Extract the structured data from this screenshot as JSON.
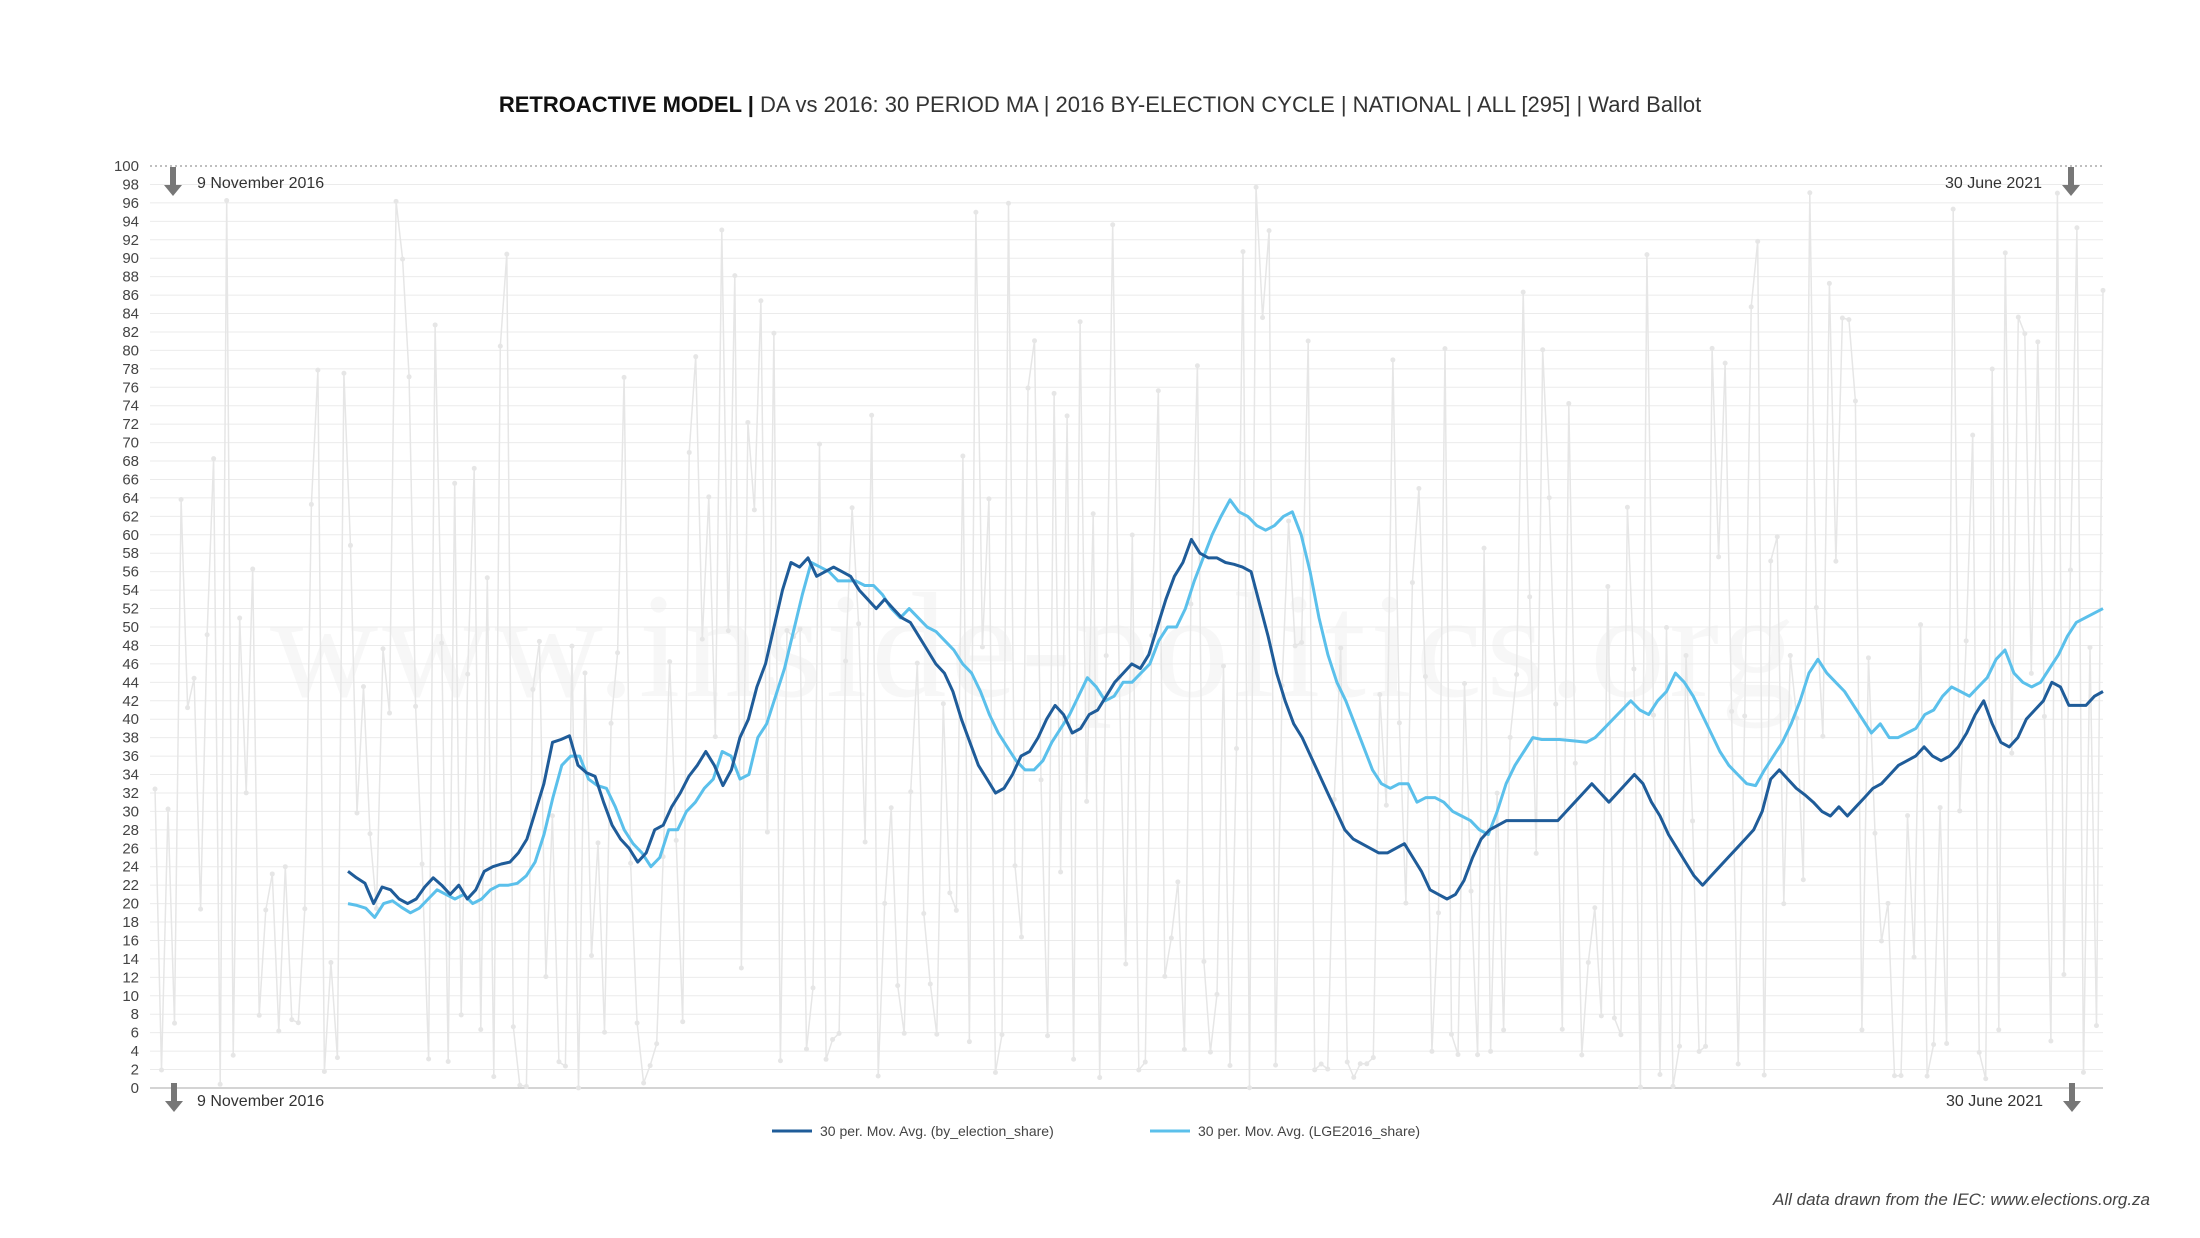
{
  "title": {
    "bold": "RETROACTIVE MODEL |",
    "rest": " DA vs 2016: 30 PERIOD MA | 2016 BY-ELECTION CYCLE | NATIONAL | ALL [295] | Ward Ballot"
  },
  "watermark": "www.inside-politics.org",
  "source_note": "All data drawn from the IEC: www.elections.org.za",
  "colors": {
    "by_election": "#1f5c99",
    "lge2016": "#5bc0eb",
    "raw": "#e6e6e6",
    "grid": "#ebebeb"
  },
  "chart_data": {
    "type": "line",
    "title": "RETROACTIVE MODEL | DA vs 2016: 30 PERIOD MA | 2016 BY-ELECTION CYCLE | NATIONAL | ALL [295] | Ward Ballot",
    "xlabel": "",
    "ylabel": "",
    "ylim": [
      0,
      100
    ],
    "y_ticks": [
      0,
      2,
      4,
      6,
      8,
      10,
      12,
      14,
      16,
      18,
      20,
      22,
      24,
      26,
      28,
      30,
      32,
      34,
      36,
      38,
      40,
      42,
      44,
      46,
      48,
      50,
      52,
      54,
      56,
      58,
      60,
      62,
      64,
      66,
      68,
      70,
      72,
      74,
      76,
      78,
      80,
      82,
      84,
      86,
      88,
      90,
      92,
      94,
      96,
      98,
      100
    ],
    "x_start_label": "9 November 2016",
    "x_end_label": "30 June 2021",
    "grid": true,
    "legend_position": "bottom-center",
    "series": [
      {
        "name": "30 per. Mov. Avg. (by_election_share)",
        "values": [
          23.5,
          22.8,
          22.2,
          20,
          21.8,
          21.5,
          20.5,
          20,
          20.5,
          21.8,
          22.8,
          22,
          21,
          22,
          20.5,
          21.5,
          23.5,
          24,
          24.3,
          24.5,
          25.5,
          27,
          30,
          33,
          37.5,
          37.8,
          38.2,
          35,
          34.2,
          33.8,
          31,
          28.5,
          27,
          26,
          24.5,
          25.5,
          28,
          28.5,
          30.5,
          32,
          33.8,
          35,
          36.5,
          35,
          32.8,
          34.5,
          38,
          40,
          43.5,
          46,
          50,
          54,
          57,
          56.5,
          57.5,
          55.5,
          56,
          56.5,
          56,
          55.5,
          54,
          53,
          52,
          53,
          52,
          51,
          50.5,
          49,
          47.5,
          46,
          45,
          43,
          40,
          37.5,
          35,
          33.5,
          32,
          32.5,
          34,
          36,
          36.5,
          38,
          40,
          41.5,
          40.5,
          38.5,
          39,
          40.5,
          41,
          42.5,
          44,
          45,
          46,
          45.5,
          47,
          50,
          53,
          55.5,
          57,
          59.5,
          58,
          57.5,
          57.5,
          57,
          56.8,
          56.5,
          56,
          52.5,
          49,
          45,
          42,
          39.5,
          38,
          36,
          34,
          32,
          30,
          28,
          27,
          26.5,
          26,
          25.5,
          25.5,
          26,
          26.5,
          25,
          23.5,
          21.5,
          21,
          20.5,
          21,
          22.5,
          25,
          27,
          28,
          28.5,
          29,
          29,
          29,
          29,
          29,
          29,
          29,
          30,
          31,
          32,
          33,
          32,
          31,
          32,
          33,
          34,
          33,
          31,
          29.5,
          27.5,
          26,
          24.5,
          23,
          22,
          23,
          24,
          25,
          26,
          27,
          28,
          30,
          33.5,
          34.5,
          33.5,
          32.5,
          31.8,
          31,
          30,
          29.5,
          30.5,
          29.5,
          30.5,
          31.5,
          32.5,
          33,
          34,
          35,
          35.5,
          36,
          37,
          36,
          35.5,
          36,
          37,
          38.5,
          40.5,
          42,
          39.5,
          37.5,
          37,
          38,
          40,
          41,
          42,
          44,
          43.5,
          41.5,
          41.5,
          41.5,
          42.5,
          43
        ]
      },
      {
        "name": "30 per. Mov. Avg. (LGE2016_share)",
        "values": [
          20,
          19.8,
          19.5,
          18.5,
          20,
          20.3,
          19.6,
          19,
          19.5,
          20.5,
          21.5,
          21,
          20.5,
          21,
          20,
          20.5,
          21.5,
          22,
          22,
          22.2,
          23,
          24.5,
          27.5,
          31.5,
          35,
          36,
          36,
          33.5,
          32.8,
          32.5,
          30.5,
          28,
          26.5,
          25.5,
          24,
          25,
          28,
          28,
          30,
          31,
          32.5,
          33.5,
          36.5,
          36,
          33.5,
          34,
          38,
          39.5,
          42.5,
          45.5,
          49.5,
          53.5,
          57,
          56.5,
          56,
          55,
          55,
          55,
          54.5,
          54.5,
          53.5,
          52,
          51,
          52,
          51,
          50,
          49.5,
          48.5,
          47.5,
          46,
          45,
          43,
          40.5,
          38.5,
          37,
          35.5,
          34.5,
          34.5,
          35.5,
          37.5,
          39,
          40.5,
          42.5,
          44.5,
          43.5,
          42,
          42.5,
          44,
          44,
          45,
          46,
          48.5,
          50,
          50,
          52,
          55,
          57.5,
          60,
          62,
          63.8,
          62.5,
          62,
          61,
          60.5,
          61,
          62,
          62.5,
          60,
          56,
          51,
          47,
          44,
          42,
          39.5,
          37,
          34.5,
          33,
          32.5,
          33,
          33,
          31,
          31.5,
          31.5,
          31,
          30,
          29.5,
          29,
          28,
          27.5,
          30,
          33,
          35,
          36.5,
          38,
          37.8,
          37.8,
          37.8,
          37.7,
          37.6,
          37.5,
          38,
          39,
          40,
          41,
          42,
          41,
          40.5,
          42,
          43,
          45,
          44,
          42.5,
          40.5,
          38.5,
          36.5,
          35,
          34,
          33,
          32.8,
          34.5,
          36,
          37.5,
          39.5,
          42,
          45,
          46.5,
          45,
          44,
          43,
          41.5,
          40,
          38.5,
          39.5,
          38,
          38,
          38.5,
          39,
          40.5,
          41,
          42.5,
          43.5,
          43,
          42.5,
          43.5,
          44.5,
          46.5,
          47.5,
          45,
          44,
          43.5,
          44,
          45.5,
          47,
          49,
          50.5,
          51,
          51.5,
          52
        ]
      }
    ]
  }
}
